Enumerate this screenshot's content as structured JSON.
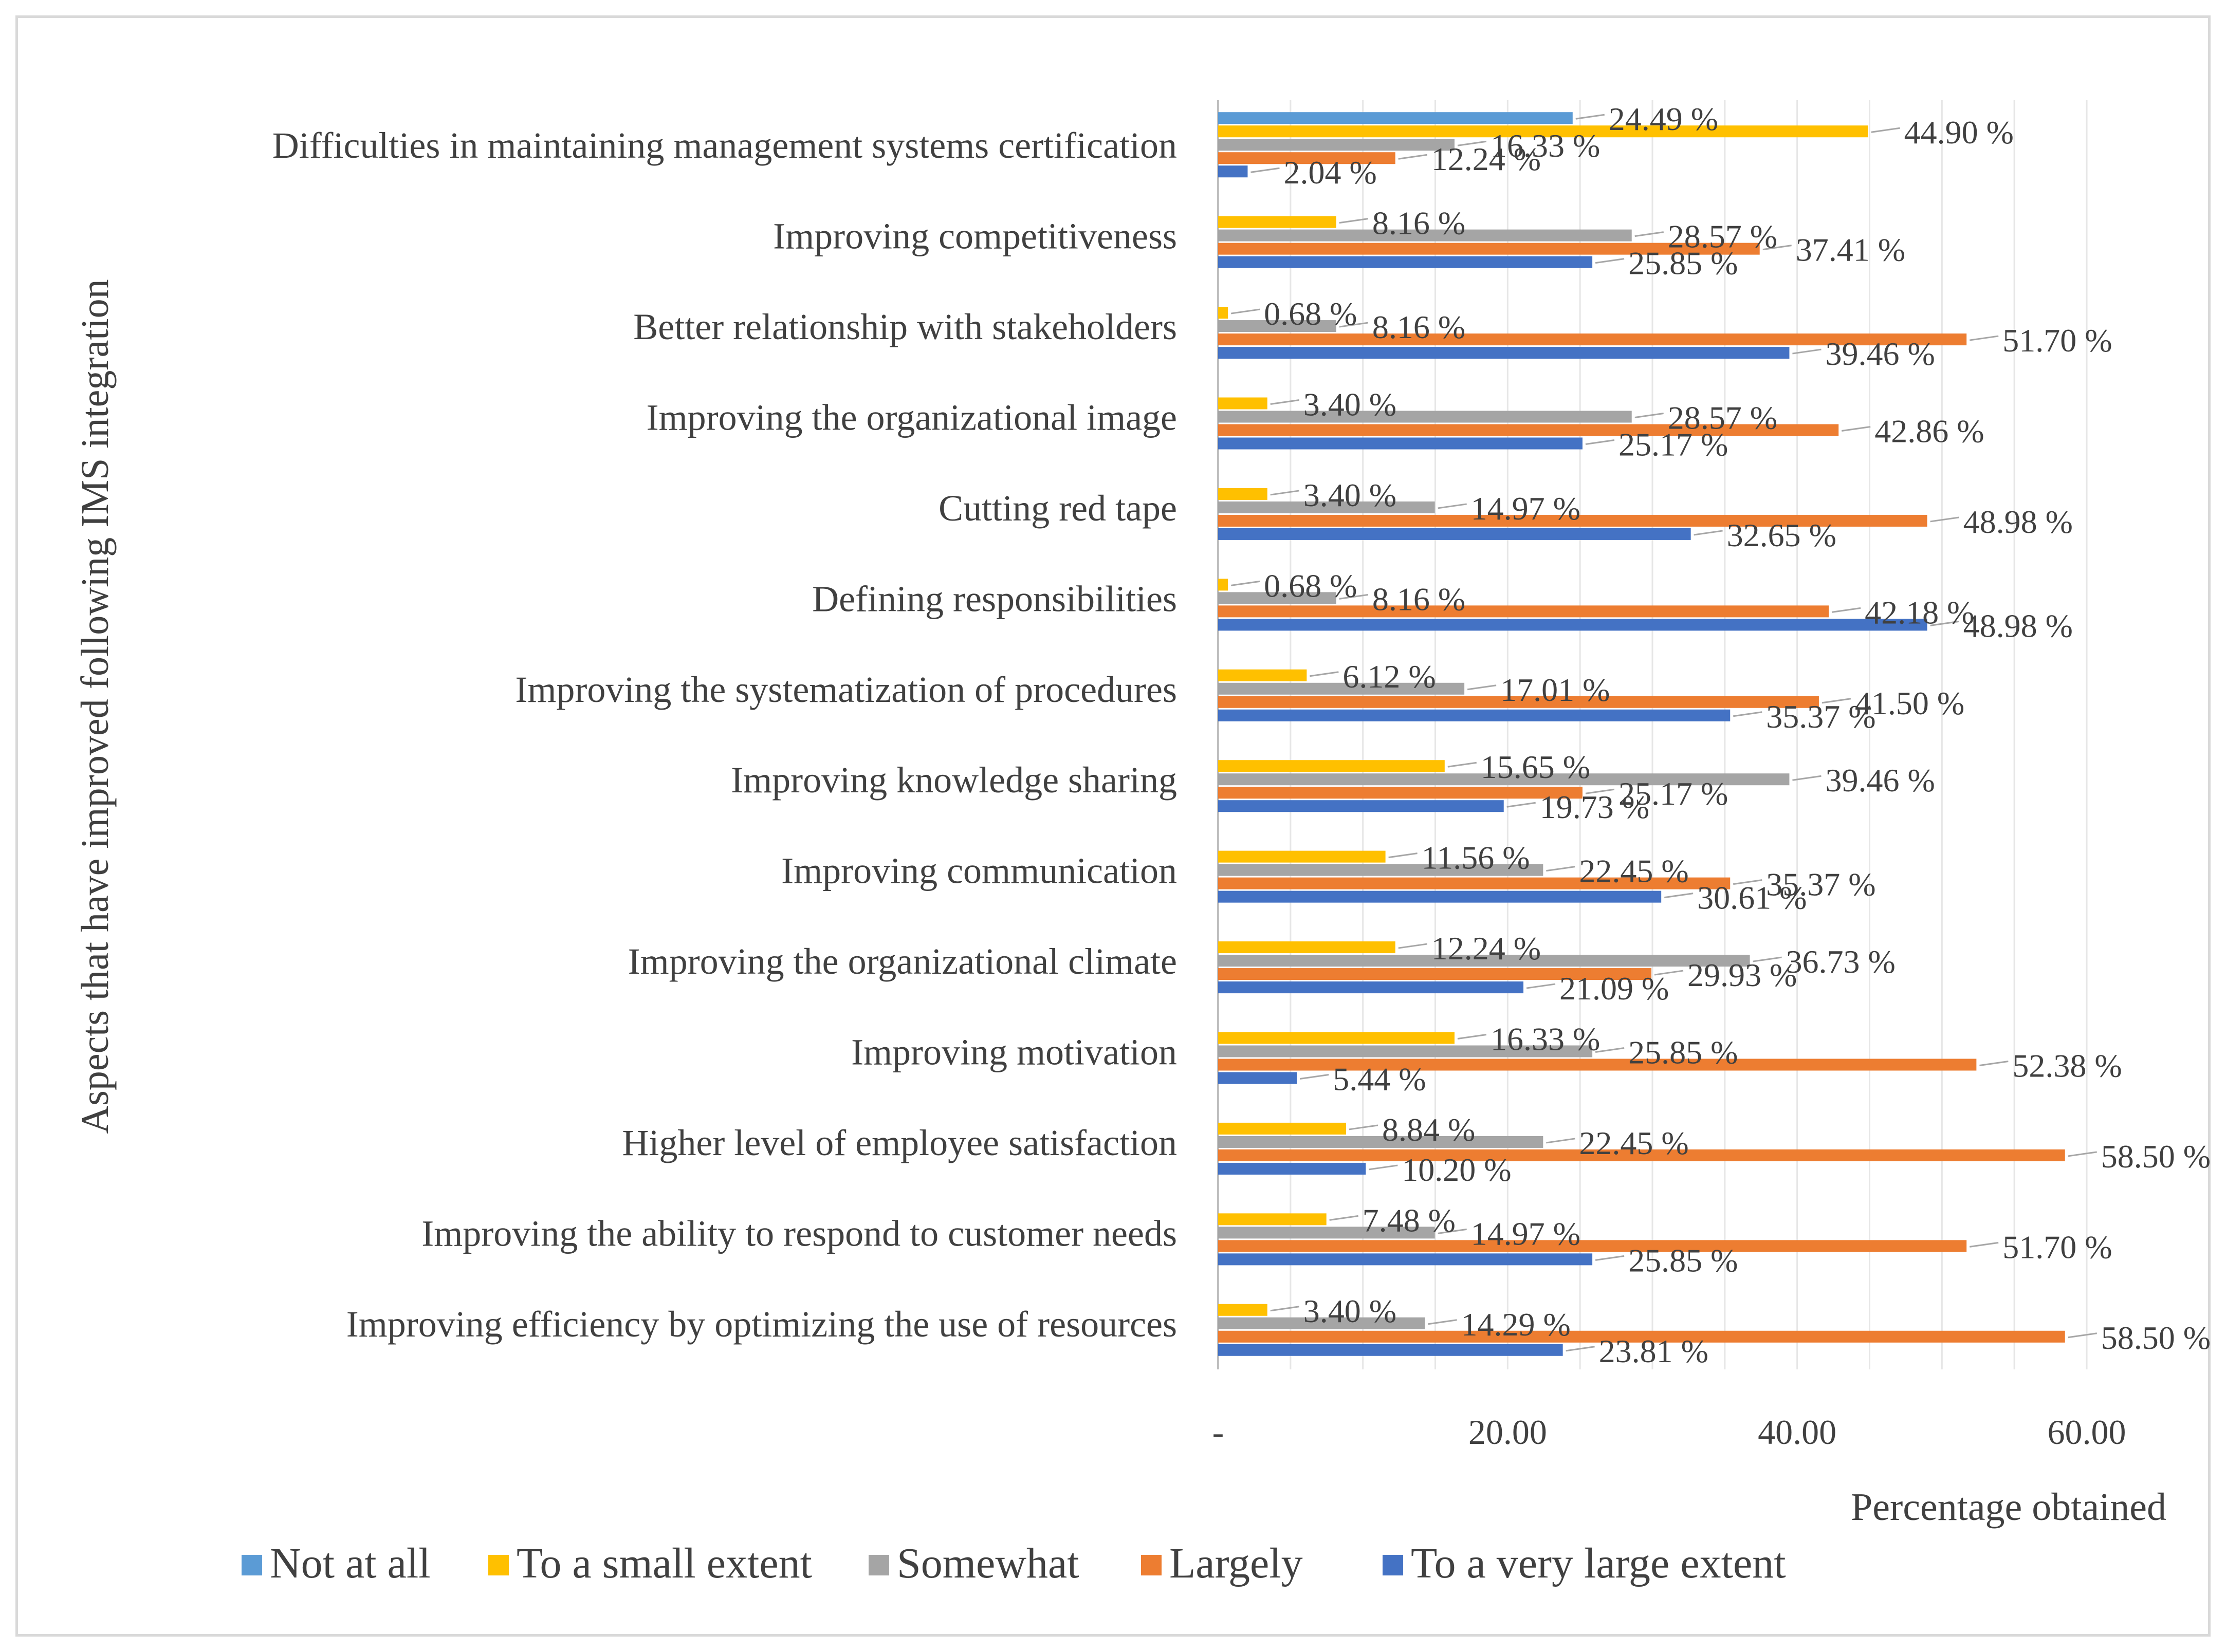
{
  "chart_data": {
    "type": "bar",
    "orientation": "horizontal",
    "ylabel": "Aspects that have improved following IMS integration",
    "xlabel": "Percentage obtained",
    "xlim": [
      0,
      60
    ],
    "x_ticks": [
      "-",
      "20.00",
      "40.00",
      "60.00"
    ],
    "grid": true,
    "legend_position": "bottom",
    "categories": [
      "Difficulties in maintaining management systems certification",
      "Improving competitiveness",
      "Better relationship with stakeholders",
      "Improving the organizational image",
      "Cutting red tape",
      "Defining responsibilities",
      "Improving the systematization of procedures",
      "Improving knowledge sharing",
      "Improving communication",
      "Improving the organizational climate",
      "Improving motivation",
      "Higher level of employee satisfaction",
      "Improving the ability to respond to customer needs",
      "Improving efficiency by optimizing the use of resources"
    ],
    "series": [
      {
        "name": "Not at all",
        "color": "#5B9BD5",
        "values": [
          24.49,
          0,
          0,
          0,
          0,
          0,
          0,
          0,
          0,
          0,
          0,
          0,
          0,
          0
        ],
        "labels": [
          "24.49 %",
          "",
          "",
          "",
          "",
          "",
          "",
          "",
          "",
          "",
          "",
          "",
          "",
          ""
        ]
      },
      {
        "name": "To a small extent",
        "color": "#FFC000",
        "values": [
          44.9,
          8.16,
          0.68,
          3.4,
          3.4,
          0.68,
          6.12,
          15.65,
          11.56,
          12.24,
          16.33,
          8.84,
          7.48,
          3.4
        ],
        "labels": [
          "44.90 %",
          "8.16 %",
          "0.68 %",
          "3.40 %",
          "3.40 %",
          "0.68 %",
          "6.12 %",
          "15.65 %",
          "11.56 %",
          "12.24 %",
          "16.33 %",
          "8.84 %",
          "7.48 %",
          "3.40 %"
        ]
      },
      {
        "name": "Somewhat",
        "color": "#A5A5A5",
        "values": [
          16.33,
          28.57,
          8.16,
          28.57,
          14.97,
          8.16,
          17.01,
          39.46,
          22.45,
          36.73,
          25.85,
          22.45,
          14.97,
          14.29
        ],
        "labels": [
          "16.33 %",
          "28.57 %",
          "8.16 %",
          "28.57 %",
          "14.97 %",
          "8.16 %",
          "17.01 %",
          "39.46 %",
          "22.45 %",
          "36.73 %",
          "25.85 %",
          "22.45 %",
          "14.97 %",
          "14.29 %"
        ]
      },
      {
        "name": "Largely",
        "color": "#ED7D31",
        "values": [
          12.24,
          37.41,
          51.7,
          42.86,
          48.98,
          42.18,
          41.5,
          25.17,
          35.37,
          29.93,
          52.38,
          58.5,
          51.7,
          58.5
        ],
        "labels": [
          "12.24 %",
          "37.41 %",
          "51.70 %",
          "42.86 %",
          "48.98 %",
          "42.18 %",
          "41.50 %",
          "25.17 %",
          "35.37 %",
          "29.93 %",
          "52.38 %",
          "58.50 %",
          "51.70 %",
          "58.50 %"
        ]
      },
      {
        "name": "To a very large extent",
        "color": "#4472C4",
        "values": [
          2.04,
          25.85,
          39.46,
          25.17,
          32.65,
          48.98,
          35.37,
          19.73,
          30.61,
          21.09,
          5.44,
          10.2,
          25.85,
          23.81
        ],
        "labels": [
          "2.04 %",
          "25.85 %",
          "39.46 %",
          "25.17 %",
          "32.65 %",
          "48.98 %",
          "35.37 %",
          "19.73 %",
          "30.61 %",
          "21.09 %",
          "5.44 %",
          "10.20 %",
          "25.85 %",
          "23.81 %"
        ]
      }
    ]
  }
}
